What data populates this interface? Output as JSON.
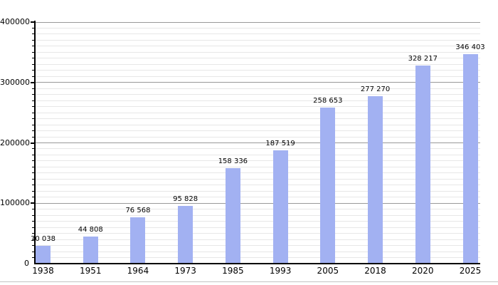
{
  "chart_data": {
    "type": "bar",
    "title": "",
    "xlabel": "",
    "ylabel": "",
    "categories": [
      "1938",
      "1951",
      "1964",
      "1973",
      "1985",
      "1993",
      "2005",
      "2018",
      "2020",
      "2025"
    ],
    "values": [
      30038,
      44808,
      76568,
      95828,
      158336,
      187519,
      258653,
      277270,
      328217,
      346403
    ],
    "value_labels": [
      "30 038",
      "44 808",
      "76 568",
      "95 828",
      "158 336",
      "187 519",
      "258 653",
      "277 270",
      "328 217",
      "346 403"
    ],
    "ylim": [
      0,
      400000
    ],
    "y_major_step": 100000,
    "y_minor_step": 10000,
    "y_tick_values": [
      0,
      100000,
      200000,
      300000,
      400000
    ],
    "y_tick_labels": [
      "0",
      "100000",
      "200000",
      "300000",
      "400000"
    ],
    "grid": "on",
    "legend": "none",
    "colors": {
      "bar_fill": "#a2b1f2",
      "grid_minor": "#e7e7e7",
      "grid_major": "#999999",
      "axis": "#000000",
      "text": "#000000",
      "bottom_rule": "#c4c4c4"
    }
  }
}
